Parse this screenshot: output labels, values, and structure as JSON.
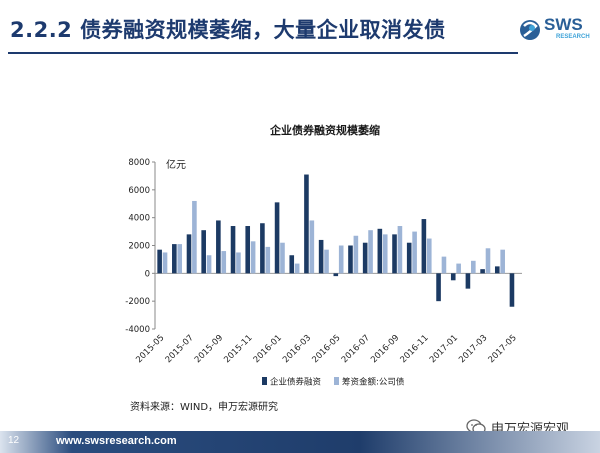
{
  "slide": {
    "title": "2.2.2 债券融资规模萎缩，大量企业取消发债",
    "logo": {
      "text": "SWS",
      "sub": "RESEARCH"
    },
    "source_note": "资料来源：WIND，申万宏源研究",
    "footer": {
      "page_number": "12",
      "url": "www.swsresearch.com"
    },
    "watermark": "申万宏源宏观",
    "colors": {
      "title": "#1d3a6e",
      "series1": "#1c3a63",
      "series2": "#9db4d6"
    }
  },
  "chart_data": {
    "type": "bar",
    "title": "企业债券融资规模萎缩",
    "ylabel": "亿元",
    "ylim": [
      -4000,
      8000
    ],
    "yticks": [
      -4000,
      -2000,
      0,
      2000,
      4000,
      6000,
      8000
    ],
    "categories": [
      "2015-05",
      "2015-06",
      "2015-07",
      "2015-08",
      "2015-09",
      "2015-10",
      "2015-11",
      "2015-12",
      "2016-01",
      "2016-02",
      "2016-03",
      "2016-04",
      "2016-05",
      "2016-06",
      "2016-07",
      "2016-08",
      "2016-09",
      "2016-10",
      "2016-11",
      "2016-12",
      "2017-01",
      "2017-02",
      "2017-03",
      "2017-04",
      "2017-05"
    ],
    "tick_labels": [
      "2015-05",
      "2015-07",
      "2015-09",
      "2015-11",
      "2016-01",
      "2016-03",
      "2016-05",
      "2016-07",
      "2016-09",
      "2016-11",
      "2017-01",
      "2017-03",
      "2017-05"
    ],
    "series": [
      {
        "name": "企业债券融资",
        "color": "#1c3a63",
        "values": [
          1700,
          2100,
          2800,
          3100,
          3800,
          3400,
          3400,
          3600,
          5100,
          1300,
          7100,
          2400,
          -200,
          2000,
          2200,
          3200,
          2800,
          2200,
          3900,
          -2000,
          -500,
          -1100,
          300,
          500,
          -2400
        ]
      },
      {
        "name": "筹资金额:公司债",
        "color": "#9db4d6",
        "values": [
          1500,
          2100,
          5200,
          1300,
          1600,
          1500,
          2300,
          1900,
          2200,
          700,
          3800,
          1700,
          2000,
          2700,
          3100,
          2800,
          3400,
          3000,
          2500,
          1200,
          700,
          900,
          1800,
          1700,
          0
        ]
      }
    ],
    "legend": "bottom",
    "grid": false
  }
}
